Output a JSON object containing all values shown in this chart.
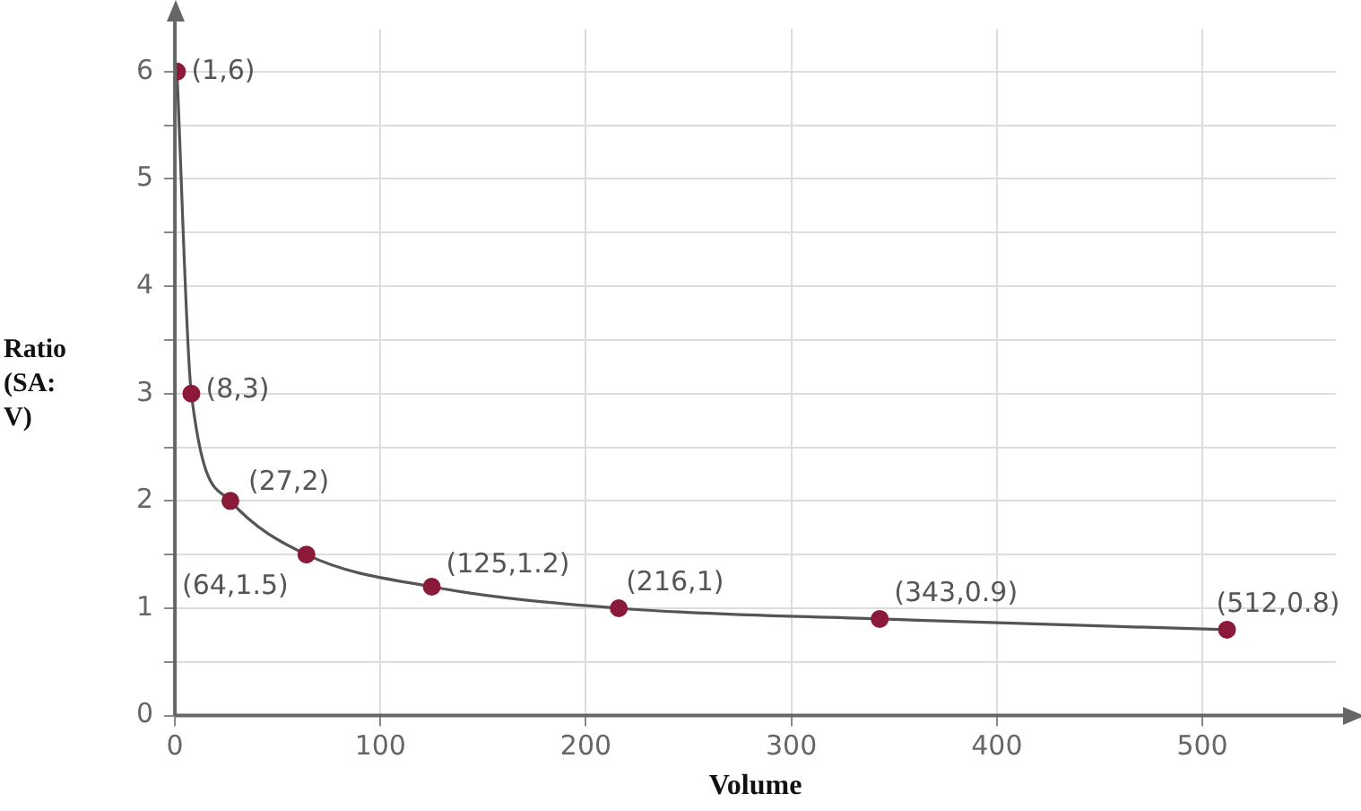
{
  "chart_data": {
    "type": "scatter",
    "xlabel": "Volume",
    "ylabel": "Ratio (SA: V)",
    "xlim": [
      0,
      565
    ],
    "xticks": [
      0,
      100,
      200,
      300,
      400,
      500
    ],
    "ylim": [
      0,
      6.4
    ],
    "yticks": [
      0,
      {
        "value": 0.5,
        "label": null
      },
      1,
      {
        "value": 1.5,
        "label": null
      },
      2,
      {
        "value": 2.5,
        "label": null
      },
      3,
      {
        "value": 3.5,
        "label": null
      },
      4,
      {
        "value": 4.5,
        "label": null
      },
      5,
      {
        "value": 5.5,
        "label": null
      },
      6
    ],
    "grid": true,
    "legend": false,
    "series": [
      {
        "type": "line",
        "color": "#555555",
        "marker": "none",
        "line_style": "solid",
        "x": [
          1,
          8,
          27,
          64,
          125,
          216,
          343,
          512
        ],
        "values": [
          6,
          3,
          2,
          1.5,
          1.2,
          1,
          0.9,
          0.8
        ]
      },
      {
        "type": "scatter",
        "color": "#8b1a3a",
        "marker": "circle",
        "x": [
          1,
          8,
          27,
          64,
          125,
          216,
          343,
          512
        ],
        "values": [
          6,
          3,
          2,
          1.5,
          1.2,
          1,
          0.9,
          0.8
        ]
      }
    ],
    "annotations": [
      {
        "text": "(1,6)",
        "x": 1,
        "y": 6
      },
      {
        "text": "(8,3)",
        "x": 8,
        "y": 3
      },
      {
        "text": "(27,2)",
        "x": 27,
        "y": 2
      },
      {
        "text": "(64,1.5)",
        "x": 64,
        "y": 1.5
      },
      {
        "text": "(125,1.2)",
        "x": 125,
        "y": 1.2
      },
      {
        "text": "(216,1)",
        "x": 216,
        "y": 1
      },
      {
        "text": "(343,0.9)",
        "x": 343,
        "y": 0.9
      },
      {
        "text": "(512,0.8)",
        "x": 512,
        "y": 0.8
      }
    ]
  }
}
